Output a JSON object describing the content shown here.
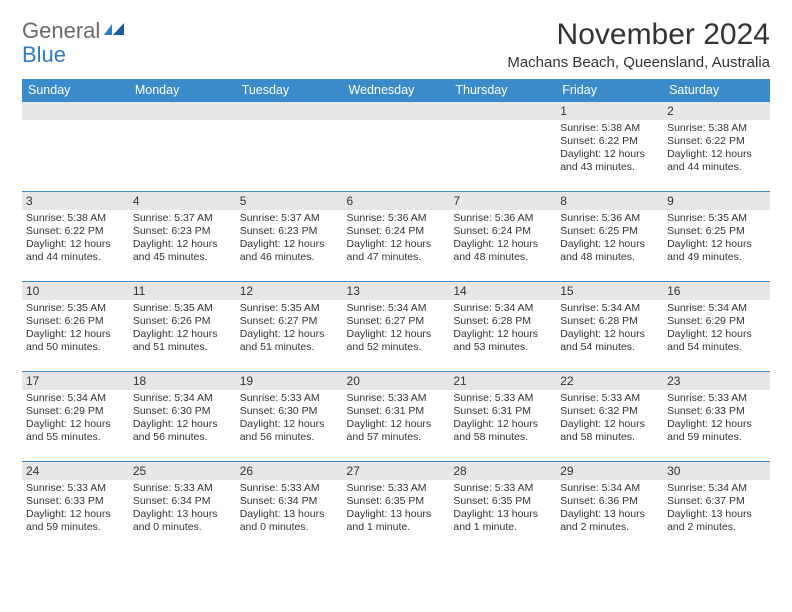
{
  "logo": {
    "text1": "General",
    "text2": "Blue",
    "text1_color": "#6a6a6a",
    "text2_color": "#2f7ac4"
  },
  "title": "November 2024",
  "subtitle": "Machans Beach, Queensland, Australia",
  "calendar": {
    "header_bg": "#3b8bca",
    "header_fg": "#ffffff",
    "daynum_bg": "#e6e6e6",
    "border_color": "#3b8bca",
    "columns": [
      "Sunday",
      "Monday",
      "Tuesday",
      "Wednesday",
      "Thursday",
      "Friday",
      "Saturday"
    ],
    "weeks": [
      [
        {
          "n": "",
          "lines": []
        },
        {
          "n": "",
          "lines": []
        },
        {
          "n": "",
          "lines": []
        },
        {
          "n": "",
          "lines": []
        },
        {
          "n": "",
          "lines": []
        },
        {
          "n": "1",
          "lines": [
            "Sunrise: 5:38 AM",
            "Sunset: 6:22 PM",
            "Daylight: 12 hours and 43 minutes."
          ]
        },
        {
          "n": "2",
          "lines": [
            "Sunrise: 5:38 AM",
            "Sunset: 6:22 PM",
            "Daylight: 12 hours and 44 minutes."
          ]
        }
      ],
      [
        {
          "n": "3",
          "lines": [
            "Sunrise: 5:38 AM",
            "Sunset: 6:22 PM",
            "Daylight: 12 hours and 44 minutes."
          ]
        },
        {
          "n": "4",
          "lines": [
            "Sunrise: 5:37 AM",
            "Sunset: 6:23 PM",
            "Daylight: 12 hours and 45 minutes."
          ]
        },
        {
          "n": "5",
          "lines": [
            "Sunrise: 5:37 AM",
            "Sunset: 6:23 PM",
            "Daylight: 12 hours and 46 minutes."
          ]
        },
        {
          "n": "6",
          "lines": [
            "Sunrise: 5:36 AM",
            "Sunset: 6:24 PM",
            "Daylight: 12 hours and 47 minutes."
          ]
        },
        {
          "n": "7",
          "lines": [
            "Sunrise: 5:36 AM",
            "Sunset: 6:24 PM",
            "Daylight: 12 hours and 48 minutes."
          ]
        },
        {
          "n": "8",
          "lines": [
            "Sunrise: 5:36 AM",
            "Sunset: 6:25 PM",
            "Daylight: 12 hours and 48 minutes."
          ]
        },
        {
          "n": "9",
          "lines": [
            "Sunrise: 5:35 AM",
            "Sunset: 6:25 PM",
            "Daylight: 12 hours and 49 minutes."
          ]
        }
      ],
      [
        {
          "n": "10",
          "lines": [
            "Sunrise: 5:35 AM",
            "Sunset: 6:26 PM",
            "Daylight: 12 hours and 50 minutes."
          ]
        },
        {
          "n": "11",
          "lines": [
            "Sunrise: 5:35 AM",
            "Sunset: 6:26 PM",
            "Daylight: 12 hours and 51 minutes."
          ]
        },
        {
          "n": "12",
          "lines": [
            "Sunrise: 5:35 AM",
            "Sunset: 6:27 PM",
            "Daylight: 12 hours and 51 minutes."
          ]
        },
        {
          "n": "13",
          "lines": [
            "Sunrise: 5:34 AM",
            "Sunset: 6:27 PM",
            "Daylight: 12 hours and 52 minutes."
          ]
        },
        {
          "n": "14",
          "lines": [
            "Sunrise: 5:34 AM",
            "Sunset: 6:28 PM",
            "Daylight: 12 hours and 53 minutes."
          ]
        },
        {
          "n": "15",
          "lines": [
            "Sunrise: 5:34 AM",
            "Sunset: 6:28 PM",
            "Daylight: 12 hours and 54 minutes."
          ]
        },
        {
          "n": "16",
          "lines": [
            "Sunrise: 5:34 AM",
            "Sunset: 6:29 PM",
            "Daylight: 12 hours and 54 minutes."
          ]
        }
      ],
      [
        {
          "n": "17",
          "lines": [
            "Sunrise: 5:34 AM",
            "Sunset: 6:29 PM",
            "Daylight: 12 hours and 55 minutes."
          ]
        },
        {
          "n": "18",
          "lines": [
            "Sunrise: 5:34 AM",
            "Sunset: 6:30 PM",
            "Daylight: 12 hours and 56 minutes."
          ]
        },
        {
          "n": "19",
          "lines": [
            "Sunrise: 5:33 AM",
            "Sunset: 6:30 PM",
            "Daylight: 12 hours and 56 minutes."
          ]
        },
        {
          "n": "20",
          "lines": [
            "Sunrise: 5:33 AM",
            "Sunset: 6:31 PM",
            "Daylight: 12 hours and 57 minutes."
          ]
        },
        {
          "n": "21",
          "lines": [
            "Sunrise: 5:33 AM",
            "Sunset: 6:31 PM",
            "Daylight: 12 hours and 58 minutes."
          ]
        },
        {
          "n": "22",
          "lines": [
            "Sunrise: 5:33 AM",
            "Sunset: 6:32 PM",
            "Daylight: 12 hours and 58 minutes."
          ]
        },
        {
          "n": "23",
          "lines": [
            "Sunrise: 5:33 AM",
            "Sunset: 6:33 PM",
            "Daylight: 12 hours and 59 minutes."
          ]
        }
      ],
      [
        {
          "n": "24",
          "lines": [
            "Sunrise: 5:33 AM",
            "Sunset: 6:33 PM",
            "Daylight: 12 hours and 59 minutes."
          ]
        },
        {
          "n": "25",
          "lines": [
            "Sunrise: 5:33 AM",
            "Sunset: 6:34 PM",
            "Daylight: 13 hours and 0 minutes."
          ]
        },
        {
          "n": "26",
          "lines": [
            "Sunrise: 5:33 AM",
            "Sunset: 6:34 PM",
            "Daylight: 13 hours and 0 minutes."
          ]
        },
        {
          "n": "27",
          "lines": [
            "Sunrise: 5:33 AM",
            "Sunset: 6:35 PM",
            "Daylight: 13 hours and 1 minute."
          ]
        },
        {
          "n": "28",
          "lines": [
            "Sunrise: 5:33 AM",
            "Sunset: 6:35 PM",
            "Daylight: 13 hours and 1 minute."
          ]
        },
        {
          "n": "29",
          "lines": [
            "Sunrise: 5:34 AM",
            "Sunset: 6:36 PM",
            "Daylight: 13 hours and 2 minutes."
          ]
        },
        {
          "n": "30",
          "lines": [
            "Sunrise: 5:34 AM",
            "Sunset: 6:37 PM",
            "Daylight: 13 hours and 2 minutes."
          ]
        }
      ]
    ]
  }
}
